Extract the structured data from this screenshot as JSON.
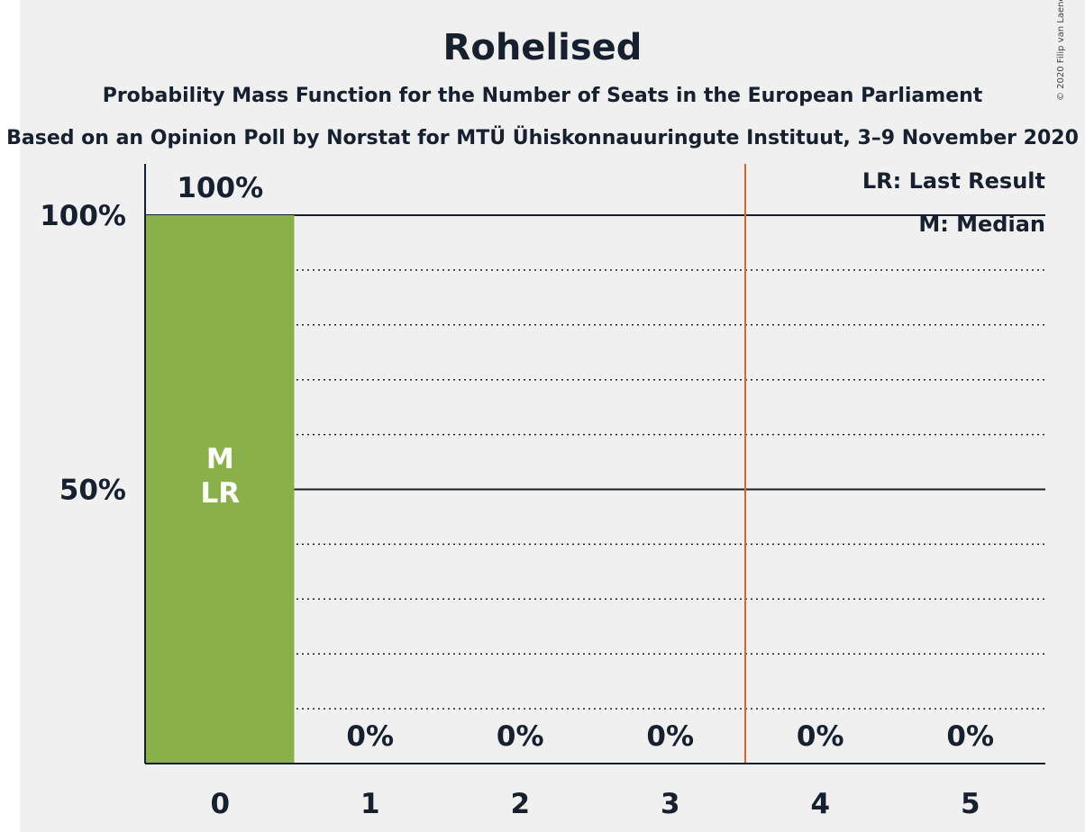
{
  "chart_data": {
    "type": "bar",
    "title": "Rohelised",
    "subtitle1": "Probability Mass Function for the Number of Seats in the European Parliament",
    "subtitle2": "Based on an Opinion Poll by Norstat for MTÜ Ühiskonnauuringute Instituut, 3–9 November 2020",
    "categories": [
      "0",
      "1",
      "2",
      "3",
      "4",
      "5"
    ],
    "values": [
      100,
      0,
      0,
      0,
      0,
      0
    ],
    "value_labels": [
      "100%",
      "0%",
      "0%",
      "0%",
      "0%",
      "0%"
    ],
    "y_tick_labels": [
      "50%",
      "100%"
    ],
    "ylim": [
      0,
      100
    ],
    "median_label": "M",
    "last_result_label": "LR",
    "last_result_line_x": 3.5,
    "legend": [
      "LR: Last Result",
      "M: Median"
    ],
    "legend_position": "top-right",
    "copyright": "© 2020 Filip van Laenen",
    "colors": {
      "bar": "#8ab04a",
      "lr_line": "#e0632a",
      "text": "#16202e",
      "background": "#f0f0f0"
    }
  }
}
